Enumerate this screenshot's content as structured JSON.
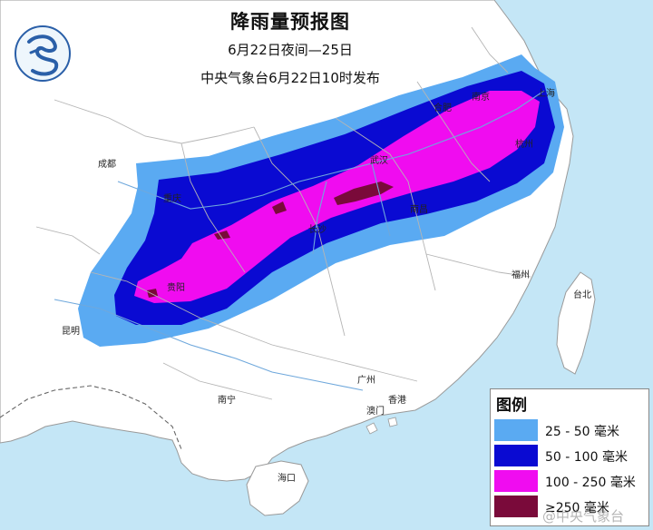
{
  "title": "降雨量预报图",
  "valid_period": "6月22日夜间—25日",
  "issuer": "中央气象台6月22日10时发布",
  "cities": {
    "chengdu": "成都",
    "guiyang": "贵阳",
    "kunming": "昆明",
    "nanning": "南宁",
    "changsha": "长沙",
    "nanchang": "南昌",
    "fuzhou": "福州",
    "taibei": "台北",
    "guangzhou": "广州",
    "xianggang": "香港",
    "aomen": "澳门",
    "haikou": "海口",
    "chongqing": "重庆",
    "wuhan": "武汉",
    "hefei": "合肥",
    "hangzhou": "杭州",
    "shanghai": "上海",
    "nanjing": "南京"
  },
  "legend": {
    "title": "图例",
    "items": [
      {
        "label": "25 - 50 毫米",
        "color": "#5aaaf2"
      },
      {
        "label": "50 - 100 毫米",
        "color": "#0a0ad2"
      },
      {
        "label": "100 - 250 毫米",
        "color": "#f00cf0"
      },
      {
        "label": "≥250 毫米",
        "color": "#7a0a3a"
      }
    ]
  },
  "colors": {
    "sea": "#c4e6f6",
    "land": "#ffffff",
    "border": "#9a9a9a",
    "province_line": "#b5b5b5",
    "river": "#6fa8dc"
  },
  "logo_icon": "cma-logo-icon",
  "watermark": "@中央气象台"
}
